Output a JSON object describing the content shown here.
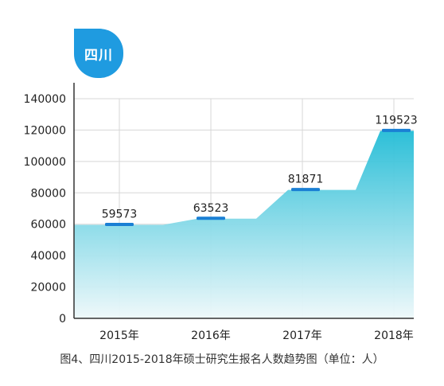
{
  "badge": {
    "label": "四川"
  },
  "chart_data": {
    "type": "area",
    "categories": [
      "2015年",
      "2016年",
      "2017年",
      "2018年"
    ],
    "values": [
      59573,
      63523,
      81871,
      119523
    ],
    "data_labels": [
      "59573",
      "63523",
      "81871",
      "119523"
    ],
    "ylim": [
      0,
      140000
    ],
    "yticks": [
      0,
      20000,
      40000,
      60000,
      80000,
      100000,
      120000,
      140000
    ],
    "ytick_labels": [
      "0",
      "20000",
      "40000",
      "60000",
      "80000",
      "100000",
      "120000",
      "140000"
    ],
    "grid": true,
    "title": "",
    "xlabel": "",
    "ylabel": "",
    "colors": {
      "fill_top": "#22bcd6",
      "fill_bottom": "#eef8fa",
      "marker": "#1a7fd4",
      "grid": "#d7d7d7",
      "axis": "#333333"
    }
  },
  "caption": "图4、四川2015-2018年硕士研究生报名人数趋势图（单位：人）"
}
